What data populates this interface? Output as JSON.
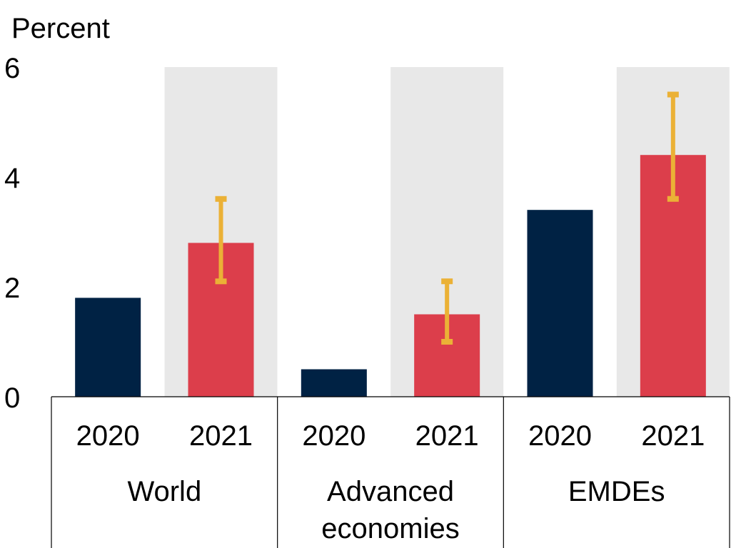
{
  "chart_data": {
    "type": "bar",
    "ylabel": "Percent",
    "ylim": [
      0,
      6
    ],
    "yticks": [
      0,
      2,
      4,
      6
    ],
    "groups": [
      {
        "label": "World",
        "bars": [
          {
            "year": "2020",
            "value": 1.8
          },
          {
            "year": "2021",
            "value": 2.8,
            "range": [
              2.1,
              3.6
            ]
          }
        ]
      },
      {
        "label": "Advanced economies",
        "label_lines": [
          "Advanced",
          "economies"
        ],
        "bars": [
          {
            "year": "2020",
            "value": 0.5
          },
          {
            "year": "2021",
            "value": 1.5,
            "range": [
              1.0,
              2.1
            ]
          }
        ]
      },
      {
        "label": "EMDEs",
        "bars": [
          {
            "year": "2020",
            "value": 3.4
          },
          {
            "year": "2021",
            "value": 4.4,
            "range": [
              3.6,
              5.5
            ]
          }
        ]
      }
    ],
    "shaded": "2021 columns shaded grey",
    "colors": {
      "2020": "#002244",
      "2021": "#dc3e4b",
      "range": "#ebb136",
      "shade": "#e8e8e8",
      "axis": "#000000"
    }
  }
}
